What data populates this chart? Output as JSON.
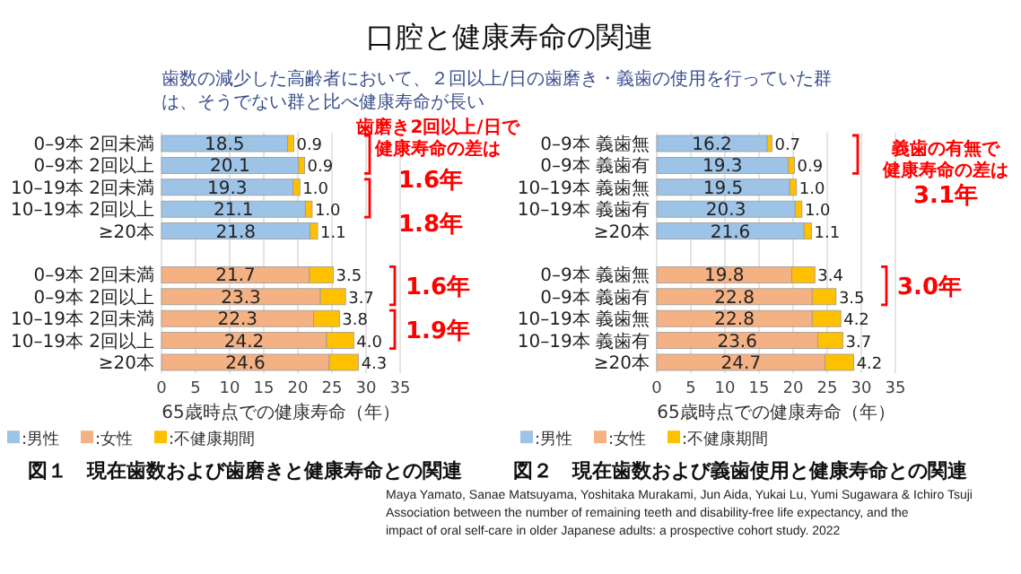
{
  "chart_data": [
    {
      "type": "bar",
      "orientation": "horizontal",
      "stacked": true,
      "title": "図１　現在歯数および歯磨きと健康寿命との関連",
      "xlabel": "65歳時点での健康寿命（年）",
      "categories": [
        "0–9本 2回未満",
        "0–9本 2回以上",
        "10–19本 2回未満",
        "10–19本 2回以上",
        "≥20本",
        null,
        "0–9本 2回未満",
        "0–9本 2回以上",
        "10–19本 2回未満",
        "10–19本 2回以上",
        "≥20本"
      ],
      "series": [
        {
          "name": ":男性",
          "color": "#9dc3e6",
          "values": [
            18.5,
            20.1,
            19.3,
            21.1,
            21.8,
            null,
            null,
            null,
            null,
            null,
            null
          ],
          "value_labels": [
            "18.5",
            "20.1",
            "19.3",
            "21.1",
            "21.8",
            null,
            null,
            null,
            null,
            null,
            null
          ]
        },
        {
          "name": ":女性",
          "color": "#f4b183",
          "values": [
            null,
            null,
            null,
            null,
            null,
            null,
            21.7,
            23.3,
            22.3,
            24.2,
            24.6
          ],
          "value_labels": [
            null,
            null,
            null,
            null,
            null,
            null,
            "21.7",
            "23.3",
            "22.3",
            "24.2",
            "24.6"
          ]
        },
        {
          "name": ":不健康期間",
          "color": "#ffc000",
          "values": [
            0.9,
            0.9,
            1.0,
            1.0,
            1.1,
            null,
            3.5,
            3.7,
            3.8,
            4.0,
            4.3
          ],
          "value_labels": [
            "0.9",
            "0.9",
            "1.0",
            "1.0",
            "1.1",
            null,
            "3.5",
            "3.7",
            "3.8",
            "4.0",
            "4.3"
          ]
        }
      ],
      "xlim": [
        0,
        35
      ],
      "xticks": [
        0,
        5,
        10,
        15,
        20,
        25,
        30,
        35
      ],
      "grid": "x",
      "legend": "bottom left",
      "annotations": [
        "口腔と健康寿命の関連",
        "歯数の減少した高齢者において、２回以上/日の歯磨き・義歯の使用を行っていた群",
        "は、そうでない群と比べ健康寿命が長い",
        "歯磨き2回以上/日で",
        "健康寿命の差は",
        "1.6年",
        "1.8年",
        "1.6年",
        "1.9年"
      ]
    },
    {
      "type": "bar",
      "orientation": "horizontal",
      "stacked": true,
      "title": "図２　現在歯数および義歯使用と健康寿命との関連",
      "xlabel": "65歳時点での健康寿命（年）",
      "categories": [
        "0–9本 義歯無",
        "0–9本 義歯有",
        "10–19本 義歯無",
        "10–19本 義歯有",
        "≥20本",
        null,
        "0–9本 義歯無",
        "0–9本 義歯有",
        "10–19本 義歯無",
        "10–19本 義歯有",
        "≥20本"
      ],
      "series": [
        {
          "name": ":男性",
          "color": "#9dc3e6",
          "values": [
            16.2,
            19.3,
            19.5,
            20.3,
            21.6,
            null,
            null,
            null,
            null,
            null,
            null
          ],
          "value_labels": [
            "16.2",
            "19.3",
            "19.5",
            "20.3",
            "21.6",
            null,
            null,
            null,
            null,
            null,
            null
          ]
        },
        {
          "name": ":女性",
          "color": "#f4b183",
          "values": [
            null,
            null,
            null,
            null,
            null,
            null,
            19.8,
            22.8,
            22.8,
            23.6,
            24.7
          ],
          "value_labels": [
            null,
            null,
            null,
            null,
            null,
            null,
            "19.8",
            "22.8",
            "22.8",
            "23.6",
            "24.7"
          ]
        },
        {
          "name": ":不健康期間",
          "color": "#ffc000",
          "values": [
            0.7,
            0.9,
            1.0,
            1.0,
            1.1,
            null,
            3.4,
            3.5,
            4.2,
            3.7,
            4.2
          ],
          "value_labels": [
            "0.7",
            "0.9",
            "1.0",
            "1.0",
            "1.1",
            null,
            "3.4",
            "3.5",
            "4.2",
            "3.7",
            "4.2"
          ]
        }
      ],
      "xlim": [
        0,
        35
      ],
      "xticks": [
        0,
        5,
        10,
        15,
        20,
        25,
        30,
        35
      ],
      "grid": "x",
      "legend": "bottom left",
      "annotations": [
        "義歯の有無で",
        "健康寿命の差は",
        "3.1年",
        "3.0年",
        "Maya Yamato, Sanae Matsuyama, Yoshitaka Murakami, Jun Aida, Yukai Lu, Yumi Sugawara & Ichiro Tsuji",
        "Association between the number of remaining teeth and disability-free life expectancy, and the",
        "impact of oral self-care in older Japanese adults: a prospective cohort study. 2022"
      ]
    }
  ]
}
